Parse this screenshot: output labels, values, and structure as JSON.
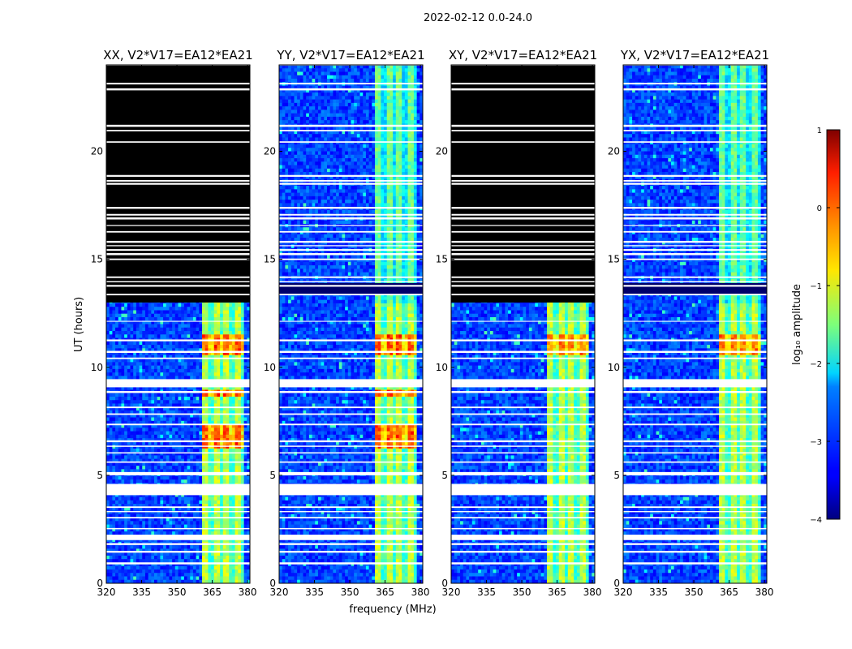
{
  "suptitle": "2022-02-12 0.0-24.0",
  "chart_data": {
    "type": "heatmap",
    "title": "2022-02-12 0.0-24.0",
    "xlabel": "frequency (MHz)",
    "ylabel": "UT (hours)",
    "xlim": [
      320,
      381
    ],
    "ylim": [
      0,
      24
    ],
    "x_ticks": [
      "320",
      "335",
      "350",
      "365",
      "380"
    ],
    "x_tick_values": [
      320,
      335,
      350,
      365,
      380
    ],
    "y_ticks": [
      "0",
      "5",
      "10",
      "15",
      "20"
    ],
    "y_tick_values": [
      0,
      5,
      10,
      15,
      20
    ],
    "panels": [
      {
        "title": "XX, V2*V17=EA12*EA21",
        "flagged_hours": [
          [
            13.0,
            24.0
          ]
        ],
        "strong_band_mhz": [
          361,
          379
        ]
      },
      {
        "title": "YY, V2*V17=EA12*EA21",
        "flagged_hours": [],
        "strong_band_mhz": [
          361,
          379
        ]
      },
      {
        "title": "XY, V2*V17=EA12*EA21",
        "flagged_hours": [
          [
            13.0,
            24.0
          ]
        ],
        "strong_band_mhz": [
          361,
          379
        ]
      },
      {
        "title": "YX, V2*V17=EA12*EA21",
        "flagged_hours": [],
        "strong_band_mhz": [
          361,
          379
        ]
      }
    ],
    "colorbar": {
      "label": "log₁₀ amplitude",
      "range": [
        -4,
        1
      ],
      "ticks": [
        "1",
        "0",
        "−1",
        "−2",
        "−3",
        "−4"
      ],
      "tick_values": [
        1,
        0,
        -1,
        -2,
        -3,
        -4
      ],
      "colormap": "jet"
    }
  }
}
